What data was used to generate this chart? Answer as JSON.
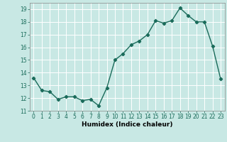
{
  "x": [
    0,
    1,
    2,
    3,
    4,
    5,
    6,
    7,
    8,
    9,
    10,
    11,
    12,
    13,
    14,
    15,
    16,
    17,
    18,
    19,
    20,
    21,
    22,
    23
  ],
  "y": [
    13.6,
    12.6,
    12.5,
    11.9,
    12.1,
    12.1,
    11.8,
    11.9,
    11.4,
    12.8,
    15.0,
    15.5,
    16.2,
    16.5,
    17.0,
    18.1,
    17.9,
    18.1,
    19.1,
    18.5,
    18.0,
    18.0,
    16.1,
    13.5
  ],
  "xlabel": "Humidex (Indice chaleur)",
  "ylim": [
    11,
    19.5
  ],
  "xlim": [
    -0.5,
    23.5
  ],
  "yticks": [
    11,
    12,
    13,
    14,
    15,
    16,
    17,
    18,
    19
  ],
  "xticks": [
    0,
    1,
    2,
    3,
    4,
    5,
    6,
    7,
    8,
    9,
    10,
    11,
    12,
    13,
    14,
    15,
    16,
    17,
    18,
    19,
    20,
    21,
    22,
    23
  ],
  "line_color": "#1a6b5a",
  "bg_color": "#c8e8e4",
  "grid_color": "#ffffff",
  "marker": "D",
  "marker_size": 2.2,
  "line_width": 1.0,
  "tick_fontsize": 5.5,
  "xlabel_fontsize": 6.5
}
